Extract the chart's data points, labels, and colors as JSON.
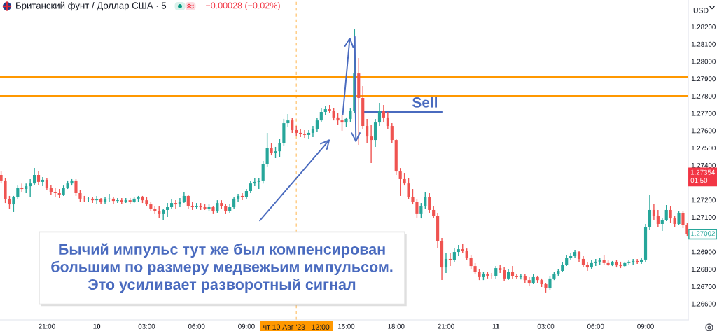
{
  "chart_data": {
    "type": "candlestick",
    "title": "Британский фунт / Доллар США · 5",
    "subtitle": "−0.00028 (−0.02%)",
    "ylabel": "USD",
    "x": [
      "2023-08-09T18:15",
      "2023-08-09T18:30",
      "2023-08-09T18:45",
      "2023-08-09T19:00",
      "2023-08-09T19:15",
      "2023-08-09T19:30",
      "2023-08-09T19:45",
      "2023-08-09T20:00",
      "2023-08-09T20:15",
      "2023-08-09T20:30",
      "2023-08-09T20:45",
      "2023-08-09T21:00",
      "2023-08-09T21:15",
      "2023-08-09T21:30",
      "2023-08-09T21:45",
      "2023-08-09T22:00",
      "2023-08-09T22:15",
      "2023-08-09T22:30",
      "2023-08-09T22:45",
      "2023-08-09T23:00",
      "2023-08-09T23:15",
      "2023-08-09T23:30",
      "2023-08-09T23:45",
      "2023-08-10T00:00",
      "2023-08-10T00:15",
      "2023-08-10T00:30",
      "2023-08-10T00:45",
      "2023-08-10T01:00",
      "2023-08-10T01:15",
      "2023-08-10T01:30",
      "2023-08-10T01:45",
      "2023-08-10T02:00",
      "2023-08-10T02:15",
      "2023-08-10T02:30",
      "2023-08-10T02:45",
      "2023-08-10T03:00",
      "2023-08-10T03:15",
      "2023-08-10T03:30",
      "2023-08-10T03:45",
      "2023-08-10T04:00",
      "2023-08-10T04:15",
      "2023-08-10T04:30",
      "2023-08-10T04:45",
      "2023-08-10T05:00",
      "2023-08-10T05:15",
      "2023-08-10T05:30",
      "2023-08-10T05:45",
      "2023-08-10T06:00",
      "2023-08-10T06:15",
      "2023-08-10T06:30",
      "2023-08-10T06:45",
      "2023-08-10T07:00",
      "2023-08-10T07:15",
      "2023-08-10T07:30",
      "2023-08-10T07:45",
      "2023-08-10T08:00",
      "2023-08-10T08:15",
      "2023-08-10T08:30",
      "2023-08-10T08:45",
      "2023-08-10T09:00",
      "2023-08-10T09:15",
      "2023-08-10T09:30",
      "2023-08-10T09:45",
      "2023-08-10T10:00",
      "2023-08-10T10:15",
      "2023-08-10T10:30",
      "2023-08-10T10:45",
      "2023-08-10T11:00",
      "2023-08-10T11:15",
      "2023-08-10T11:30",
      "2023-08-10T11:45",
      "2023-08-10T12:00",
      "2023-08-10T12:15",
      "2023-08-10T12:30",
      "2023-08-10T12:45",
      "2023-08-10T13:00",
      "2023-08-10T13:15",
      "2023-08-10T13:30",
      "2023-08-10T13:45",
      "2023-08-10T14:00",
      "2023-08-10T14:15",
      "2023-08-10T14:30",
      "2023-08-10T14:45",
      "2023-08-10T15:00",
      "2023-08-10T15:15",
      "2023-08-10T15:30",
      "2023-08-10T15:45",
      "2023-08-10T16:00",
      "2023-08-10T16:15",
      "2023-08-10T16:30",
      "2023-08-10T16:45",
      "2023-08-10T17:00",
      "2023-08-10T17:15",
      "2023-08-10T17:30",
      "2023-08-10T17:45",
      "2023-08-10T18:00",
      "2023-08-10T18:15",
      "2023-08-10T18:30",
      "2023-08-10T18:45",
      "2023-08-10T19:00",
      "2023-08-10T19:15",
      "2023-08-10T19:30",
      "2023-08-10T19:45",
      "2023-08-10T20:00",
      "2023-08-10T20:15",
      "2023-08-10T20:30",
      "2023-08-10T20:45",
      "2023-08-10T21:00",
      "2023-08-10T21:15",
      "2023-08-10T21:30",
      "2023-08-10T21:45",
      "2023-08-10T22:00",
      "2023-08-10T22:15",
      "2023-08-10T22:30",
      "2023-08-10T22:45",
      "2023-08-10T23:00",
      "2023-08-10T23:15",
      "2023-08-10T23:30",
      "2023-08-10T23:45",
      "2023-08-11T00:00",
      "2023-08-11T00:15",
      "2023-08-11T00:30",
      "2023-08-11T00:45",
      "2023-08-11T01:00",
      "2023-08-11T01:15",
      "2023-08-11T01:30",
      "2023-08-11T01:45",
      "2023-08-11T02:00",
      "2023-08-11T02:15",
      "2023-08-11T02:30",
      "2023-08-11T02:45",
      "2023-08-11T03:00",
      "2023-08-11T03:15",
      "2023-08-11T03:30",
      "2023-08-11T03:45",
      "2023-08-11T04:00",
      "2023-08-11T04:15",
      "2023-08-11T04:30",
      "2023-08-11T04:45",
      "2023-08-11T05:00",
      "2023-08-11T05:15",
      "2023-08-11T05:30",
      "2023-08-11T05:45",
      "2023-08-11T06:00",
      "2023-08-11T06:15",
      "2023-08-11T06:30",
      "2023-08-11T06:45",
      "2023-08-11T07:00",
      "2023-08-11T07:15",
      "2023-08-11T07:30",
      "2023-08-11T07:45",
      "2023-08-11T08:00",
      "2023-08-11T08:15",
      "2023-08-11T08:30",
      "2023-08-11T08:45",
      "2023-08-11T09:00",
      "2023-08-11T09:15",
      "2023-08-11T09:30",
      "2023-08-11T09:45",
      "2023-08-11T10:00",
      "2023-08-11T10:15",
      "2023-08-11T10:30",
      "2023-08-11T10:45",
      "2023-08-11T11:00",
      "2023-08-11T11:15",
      "2023-08-11T11:30"
    ],
    "ohlc": [
      [
        1.27344,
        1.27364,
        1.27295,
        1.27312
      ],
      [
        1.27312,
        1.27324,
        1.27182,
        1.27203
      ],
      [
        1.27203,
        1.27223,
        1.2715,
        1.27174
      ],
      [
        1.27174,
        1.27223,
        1.2713,
        1.27215
      ],
      [
        1.27215,
        1.27283,
        1.27203,
        1.27271
      ],
      [
        1.27271,
        1.27295,
        1.27247,
        1.27263
      ],
      [
        1.27263,
        1.27295,
        1.27239,
        1.27279
      ],
      [
        1.27279,
        1.2732,
        1.27215,
        1.27295
      ],
      [
        1.27295,
        1.27384,
        1.27283,
        1.27344
      ],
      [
        1.27344,
        1.27364,
        1.27283,
        1.27304
      ],
      [
        1.27304,
        1.27332,
        1.27279,
        1.27316
      ],
      [
        1.27316,
        1.27328,
        1.27255,
        1.27271
      ],
      [
        1.27271,
        1.27287,
        1.27231,
        1.27247
      ],
      [
        1.27247,
        1.27271,
        1.27215,
        1.27239
      ],
      [
        1.27239,
        1.27263,
        1.27211,
        1.27231
      ],
      [
        1.27231,
        1.27283,
        1.27223,
        1.27271
      ],
      [
        1.27271,
        1.27312,
        1.27263,
        1.27295
      ],
      [
        1.27295,
        1.2732,
        1.27283,
        1.27312
      ],
      [
        1.27312,
        1.2732,
        1.27223,
        1.27239
      ],
      [
        1.27239,
        1.27255,
        1.2719,
        1.27207
      ],
      [
        1.27207,
        1.27223,
        1.2719,
        1.27203
      ],
      [
        1.27203,
        1.27215,
        1.2719,
        1.27207
      ],
      [
        1.27207,
        1.27219,
        1.27182,
        1.27198
      ],
      [
        1.27198,
        1.27223,
        1.27174,
        1.27203
      ],
      [
        1.27203,
        1.27211,
        1.27174,
        1.27186
      ],
      [
        1.27186,
        1.27215,
        1.27178,
        1.27203
      ],
      [
        1.27203,
        1.27235,
        1.2719,
        1.27207
      ],
      [
        1.27207,
        1.27215,
        1.27174,
        1.27194
      ],
      [
        1.27194,
        1.27211,
        1.27182,
        1.27198
      ],
      [
        1.27198,
        1.27211,
        1.27178,
        1.2719
      ],
      [
        1.2719,
        1.27211,
        1.27182,
        1.27198
      ],
      [
        1.27198,
        1.27211,
        1.27174,
        1.2719
      ],
      [
        1.2719,
        1.27215,
        1.27182,
        1.27207
      ],
      [
        1.27207,
        1.27223,
        1.2719,
        1.27215
      ],
      [
        1.27215,
        1.27223,
        1.27182,
        1.27198
      ],
      [
        1.27198,
        1.27215,
        1.27162,
        1.27174
      ],
      [
        1.27174,
        1.2719,
        1.27134,
        1.2715
      ],
      [
        1.2715,
        1.27166,
        1.27118,
        1.27134
      ],
      [
        1.27134,
        1.27162,
        1.27093,
        1.27118
      ],
      [
        1.27118,
        1.2715,
        1.27081,
        1.27142
      ],
      [
        1.27142,
        1.27182,
        1.27101,
        1.27158
      ],
      [
        1.27158,
        1.27207,
        1.27146,
        1.27182
      ],
      [
        1.27182,
        1.27198,
        1.2715,
        1.27174
      ],
      [
        1.27174,
        1.27211,
        1.27158,
        1.2719
      ],
      [
        1.2719,
        1.27243,
        1.27182,
        1.27223
      ],
      [
        1.27223,
        1.27231,
        1.2715,
        1.27166
      ],
      [
        1.27166,
        1.2719,
        1.27142,
        1.27158
      ],
      [
        1.27158,
        1.27182,
        1.2715,
        1.27166
      ],
      [
        1.27166,
        1.27182,
        1.27142,
        1.27158
      ],
      [
        1.27158,
        1.27174,
        1.27142,
        1.2715
      ],
      [
        1.2715,
        1.27174,
        1.27134,
        1.27158
      ],
      [
        1.27158,
        1.27166,
        1.27118,
        1.27134
      ],
      [
        1.27134,
        1.27198,
        1.27126,
        1.27182
      ],
      [
        1.27182,
        1.27198,
        1.2715,
        1.27166
      ],
      [
        1.27166,
        1.27174,
        1.27118,
        1.27134
      ],
      [
        1.27134,
        1.27174,
        1.27122,
        1.27158
      ],
      [
        1.27158,
        1.27215,
        1.2715,
        1.27207
      ],
      [
        1.27207,
        1.27235,
        1.2719,
        1.27223
      ],
      [
        1.27223,
        1.27239,
        1.27198,
        1.27215
      ],
      [
        1.27215,
        1.27263,
        1.27207,
        1.27251
      ],
      [
        1.27251,
        1.27312,
        1.27239,
        1.27295
      ],
      [
        1.27295,
        1.27328,
        1.27279,
        1.27304
      ],
      [
        1.27304,
        1.27324,
        1.27263,
        1.27312
      ],
      [
        1.27312,
        1.27425,
        1.27295,
        1.27405
      ],
      [
        1.27405,
        1.27587,
        1.27393,
        1.27498
      ],
      [
        1.27498,
        1.2753,
        1.27457,
        1.27473
      ],
      [
        1.27473,
        1.27506,
        1.27441,
        1.27481
      ],
      [
        1.27481,
        1.27554,
        1.27449,
        1.27526
      ],
      [
        1.27526,
        1.27668,
        1.27514,
        1.27643
      ],
      [
        1.27643,
        1.27696,
        1.27619,
        1.27659
      ],
      [
        1.27659,
        1.27676,
        1.27587,
        1.27603
      ],
      [
        1.27603,
        1.27627,
        1.2757,
        1.27587
      ],
      [
        1.27587,
        1.27611,
        1.27562,
        1.27579
      ],
      [
        1.27579,
        1.27603,
        1.27558,
        1.27575
      ],
      [
        1.27575,
        1.27603,
        1.27554,
        1.27587
      ],
      [
        1.27587,
        1.27627,
        1.27562,
        1.27607
      ],
      [
        1.27607,
        1.27676,
        1.27595,
        1.27659
      ],
      [
        1.27659,
        1.27728,
        1.27647,
        1.27708
      ],
      [
        1.27708,
        1.2774,
        1.27688,
        1.27724
      ],
      [
        1.27724,
        1.27748,
        1.277,
        1.27716
      ],
      [
        1.27716,
        1.27732,
        1.27659,
        1.27676
      ],
      [
        1.27676,
        1.277,
        1.27635,
        1.27659
      ],
      [
        1.27659,
        1.27688,
        1.27599,
        1.27647
      ],
      [
        1.27647,
        1.27676,
        1.27619,
        1.27668
      ],
      [
        1.27668,
        1.27728,
        1.27651,
        1.27716
      ],
      [
        1.27716,
        1.28185,
        1.277,
        1.2793
      ],
      [
        1.2793,
        1.28019,
        1.27518,
        1.27789
      ],
      [
        1.27789,
        1.27858,
        1.27607,
        1.27627
      ],
      [
        1.27627,
        1.27668,
        1.27526,
        1.27566
      ],
      [
        1.27566,
        1.27635,
        1.27413,
        1.27546
      ],
      [
        1.27546,
        1.27668,
        1.27506,
        1.27647
      ],
      [
        1.27647,
        1.27761,
        1.27627,
        1.27716
      ],
      [
        1.27716,
        1.27748,
        1.27647,
        1.27676
      ],
      [
        1.27676,
        1.27708,
        1.27607,
        1.27627
      ],
      [
        1.27627,
        1.27643,
        1.27526,
        1.27546
      ],
      [
        1.27546,
        1.27554,
        1.27344,
        1.27364
      ],
      [
        1.27364,
        1.27384,
        1.27223,
        1.2732
      ],
      [
        1.2732,
        1.27356,
        1.27283,
        1.27295
      ],
      [
        1.27295,
        1.27324,
        1.27203,
        1.27215
      ],
      [
        1.27215,
        1.27263,
        1.27174,
        1.2719
      ],
      [
        1.2719,
        1.27203,
        1.27093,
        1.27118
      ],
      [
        1.27118,
        1.27182,
        1.27093,
        1.27162
      ],
      [
        1.27162,
        1.27243,
        1.2715,
        1.27215
      ],
      [
        1.27215,
        1.27239,
        1.27122,
        1.27142
      ],
      [
        1.27142,
        1.27162,
        1.27093,
        1.27109
      ],
      [
        1.27109,
        1.27122,
        1.26919,
        1.2696
      ],
      [
        1.2696,
        1.2698,
        1.26737,
        1.2681
      ],
      [
        1.2681,
        1.26891,
        1.26778,
        1.26859
      ],
      [
        1.26859,
        1.26891,
        1.26818,
        1.26851
      ],
      [
        1.26851,
        1.26919,
        1.26839,
        1.26899
      ],
      [
        1.26899,
        1.2694,
        1.26875,
        1.26915
      ],
      [
        1.26915,
        1.26948,
        1.26891,
        1.26907
      ],
      [
        1.26907,
        1.26919,
        1.26851,
        1.26867
      ],
      [
        1.26867,
        1.26883,
        1.26802,
        1.26818
      ],
      [
        1.26818,
        1.26835,
        1.2677,
        1.26786
      ],
      [
        1.26786,
        1.26802,
        1.26737,
        1.26754
      ],
      [
        1.26754,
        1.26786,
        1.26737,
        1.2677
      ],
      [
        1.2677,
        1.26786,
        1.26746,
        1.26762
      ],
      [
        1.26762,
        1.26778,
        1.26746,
        1.26758
      ],
      [
        1.26758,
        1.26818,
        1.26746,
        1.26806
      ],
      [
        1.26806,
        1.26826,
        1.26778,
        1.26794
      ],
      [
        1.26794,
        1.2681,
        1.26729,
        1.26746
      ],
      [
        1.26746,
        1.26798,
        1.26737,
        1.26786
      ],
      [
        1.26786,
        1.26818,
        1.26746,
        1.26758
      ],
      [
        1.26758,
        1.2677,
        1.26746,
        1.26754
      ],
      [
        1.26754,
        1.2677,
        1.26741,
        1.26758
      ],
      [
        1.26758,
        1.2677,
        1.26721,
        1.26737
      ],
      [
        1.26737,
        1.26754,
        1.26705,
        1.26717
      ],
      [
        1.26717,
        1.2677,
        1.26713,
        1.26754
      ],
      [
        1.26754,
        1.26762,
        1.26721,
        1.26737
      ],
      [
        1.26737,
        1.26746,
        1.26697,
        1.26713
      ],
      [
        1.26713,
        1.26721,
        1.26665,
        1.26689
      ],
      [
        1.26689,
        1.26758,
        1.26681,
        1.26746
      ],
      [
        1.26746,
        1.26786,
        1.26737,
        1.26774
      ],
      [
        1.26774,
        1.26802,
        1.26762,
        1.2679
      ],
      [
        1.2679,
        1.26839,
        1.26782,
        1.26826
      ],
      [
        1.26826,
        1.26883,
        1.26818,
        1.26867
      ],
      [
        1.26867,
        1.26891,
        1.26851,
        1.26875
      ],
      [
        1.26875,
        1.26911,
        1.26867,
        1.26899
      ],
      [
        1.26899,
        1.26907,
        1.26843,
        1.26859
      ],
      [
        1.26859,
        1.26875,
        1.2681,
        1.26826
      ],
      [
        1.26826,
        1.26843,
        1.2679,
        1.2681
      ],
      [
        1.2681,
        1.26851,
        1.26802,
        1.26835
      ],
      [
        1.26835,
        1.26859,
        1.26818,
        1.26843
      ],
      [
        1.26843,
        1.26867,
        1.26826,
        1.26851
      ],
      [
        1.26851,
        1.26879,
        1.26826,
        1.26835
      ],
      [
        1.26835,
        1.26851,
        1.26818,
        1.26826
      ],
      [
        1.26826,
        1.26847,
        1.26818,
        1.26839
      ],
      [
        1.26839,
        1.26851,
        1.2681,
        1.26822
      ],
      [
        1.26822,
        1.26843,
        1.26806,
        1.26818
      ],
      [
        1.26818,
        1.26843,
        1.2681,
        1.26835
      ],
      [
        1.26835,
        1.26855,
        1.26822,
        1.26843
      ],
      [
        1.26843,
        1.26859,
        1.26826,
        1.26847
      ],
      [
        1.26847,
        1.26859,
        1.2683,
        1.26839
      ],
      [
        1.26839,
        1.26863,
        1.2683,
        1.26855
      ],
      [
        1.26855,
        1.27061,
        1.26843,
        1.27041
      ],
      [
        1.27041,
        1.27231,
        1.27029,
        1.27142
      ],
      [
        1.27142,
        1.27174,
        1.27081,
        1.27109
      ],
      [
        1.27109,
        1.27142,
        1.27041,
        1.27061
      ],
      [
        1.27061,
        1.27093,
        1.27021,
        1.27085
      ],
      [
        1.27085,
        1.2717,
        1.27077,
        1.27142
      ],
      [
        1.27142,
        1.27162,
        1.27069,
        1.27093
      ],
      [
        1.27093,
        1.27109,
        1.27041,
        1.27061
      ],
      [
        1.27061,
        1.27134,
        1.27053,
        1.27122
      ],
      [
        1.27122,
        1.27134,
        1.27037,
        1.27053
      ],
      [
        1.27053,
        1.27069,
        1.26992,
        1.27002
      ]
    ],
    "series": [
      {
        "type": "line",
        "name": "Sell",
        "color": "#4a6bbf",
        "x": [
          "2023-08-10T16:00",
          "2023-08-10T20:45"
        ],
        "values": [
          1.27708,
          1.27708
        ]
      }
    ],
    "xlim": [
      "2023-08-09T18:11",
      "2023-08-11T11:34"
    ],
    "ylim": [
      1.26507,
      1.28355
    ],
    "xticks": [
      {
        "value": "2023-08-09T21:00",
        "label": "21:00"
      },
      {
        "value": "2023-08-10T00:00",
        "label": "10"
      },
      {
        "value": "2023-08-10T03:00",
        "label": "03:00"
      },
      {
        "value": "2023-08-10T06:00",
        "label": "06:00"
      },
      {
        "value": "2023-08-10T09:00",
        "label": "09:00"
      },
      {
        "value": "2023-08-10T15:00",
        "label": "15:00"
      },
      {
        "value": "2023-08-10T18:00",
        "label": "18:00"
      },
      {
        "value": "2023-08-10T21:00",
        "label": "21:00"
      },
      {
        "value": "2023-08-11T00:00",
        "label": "11"
      },
      {
        "value": "2023-08-11T03:00",
        "label": "03:00"
      },
      {
        "value": "2023-08-11T06:00",
        "label": "06:00"
      },
      {
        "value": "2023-08-11T09:00",
        "label": "09:00"
      }
    ],
    "yticks": [
      {
        "value": 1.266,
        "label": "1.26600"
      },
      {
        "value": 1.267,
        "label": "1.26700"
      },
      {
        "value": 1.268,
        "label": "1.26800"
      },
      {
        "value": 1.269,
        "label": "1.26900"
      },
      {
        "value": 1.271,
        "label": "1.27100"
      },
      {
        "value": 1.272,
        "label": "1.27200"
      },
      {
        "value": 1.274,
        "label": "1.27400"
      },
      {
        "value": 1.275,
        "label": "1.27500"
      },
      {
        "value": 1.276,
        "label": "1.27600"
      },
      {
        "value": 1.277,
        "label": "1.27700"
      },
      {
        "value": 1.278,
        "label": "1.27800"
      },
      {
        "value": 1.279,
        "label": "1.27900"
      },
      {
        "value": 1.28,
        "label": "1.28000"
      },
      {
        "value": 1.281,
        "label": "1.28100"
      },
      {
        "value": 1.282,
        "label": "1.28200"
      }
    ],
    "ref_lines": [
      {
        "axis": "y",
        "value": 1.2791,
        "color": "#ff9800",
        "line_style": "solid"
      },
      {
        "axis": "y",
        "value": 1.278,
        "color": "#ff9800",
        "line_style": "solid"
      },
      {
        "axis": "x",
        "value": "2023-08-10T12:00",
        "label": "чт 10 Авг '23   12:00",
        "color": "#ff9800",
        "line_style": "dashed"
      }
    ],
    "annotations": [
      "Бычий импульс тут же был компенсирован\nбольшим по размеру медвежьим импульсом.\nЭто усиливает разворотный сигнал",
      "1.27354\n01:50",
      {
        "text": "1.27002",
        "x": "2023-08-11T11:30",
        "y": 1.27002
      }
    ]
  }
}
